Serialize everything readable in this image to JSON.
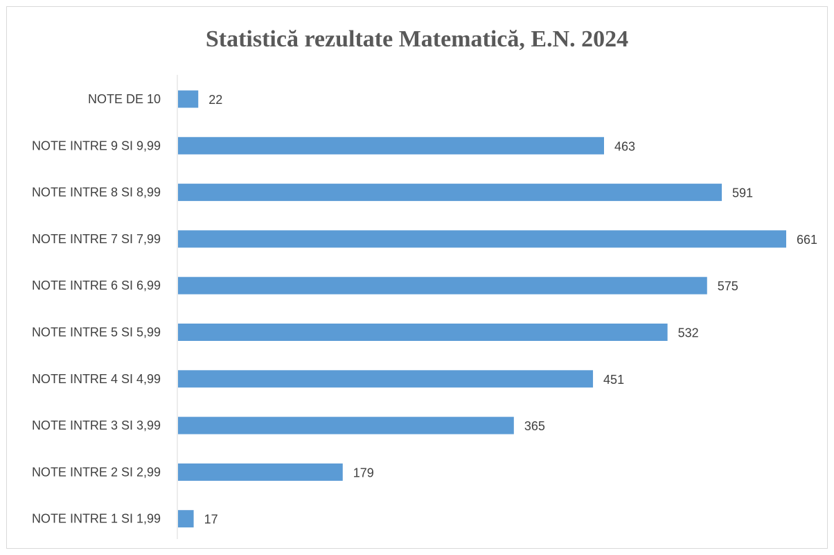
{
  "chart_data": {
    "type": "bar",
    "orientation": "horizontal",
    "title": "Statistică rezultate Matematică, E.N. 2024",
    "categories": [
      "NOTE DE 10",
      "NOTE INTRE 9 SI 9,99",
      "NOTE INTRE 8 SI 8,99",
      "NOTE INTRE 7 SI 7,99",
      "NOTE INTRE 6 SI 6,99",
      "NOTE INTRE 5 SI 5,99",
      "NOTE INTRE 4 SI 4,99",
      "NOTE INTRE 3 SI 3,99",
      "NOTE INTRE 2 SI 2,99",
      "NOTE INTRE 1 SI 1,99"
    ],
    "values": [
      22,
      463,
      591,
      661,
      575,
      532,
      451,
      365,
      179,
      17
    ],
    "xlim": [
      0,
      661
    ],
    "grid": false,
    "legend": "none",
    "data_labels": true,
    "bar_color": "#5b9bd5",
    "axis_color": "#d9d9d9",
    "text_color": "#404040"
  }
}
